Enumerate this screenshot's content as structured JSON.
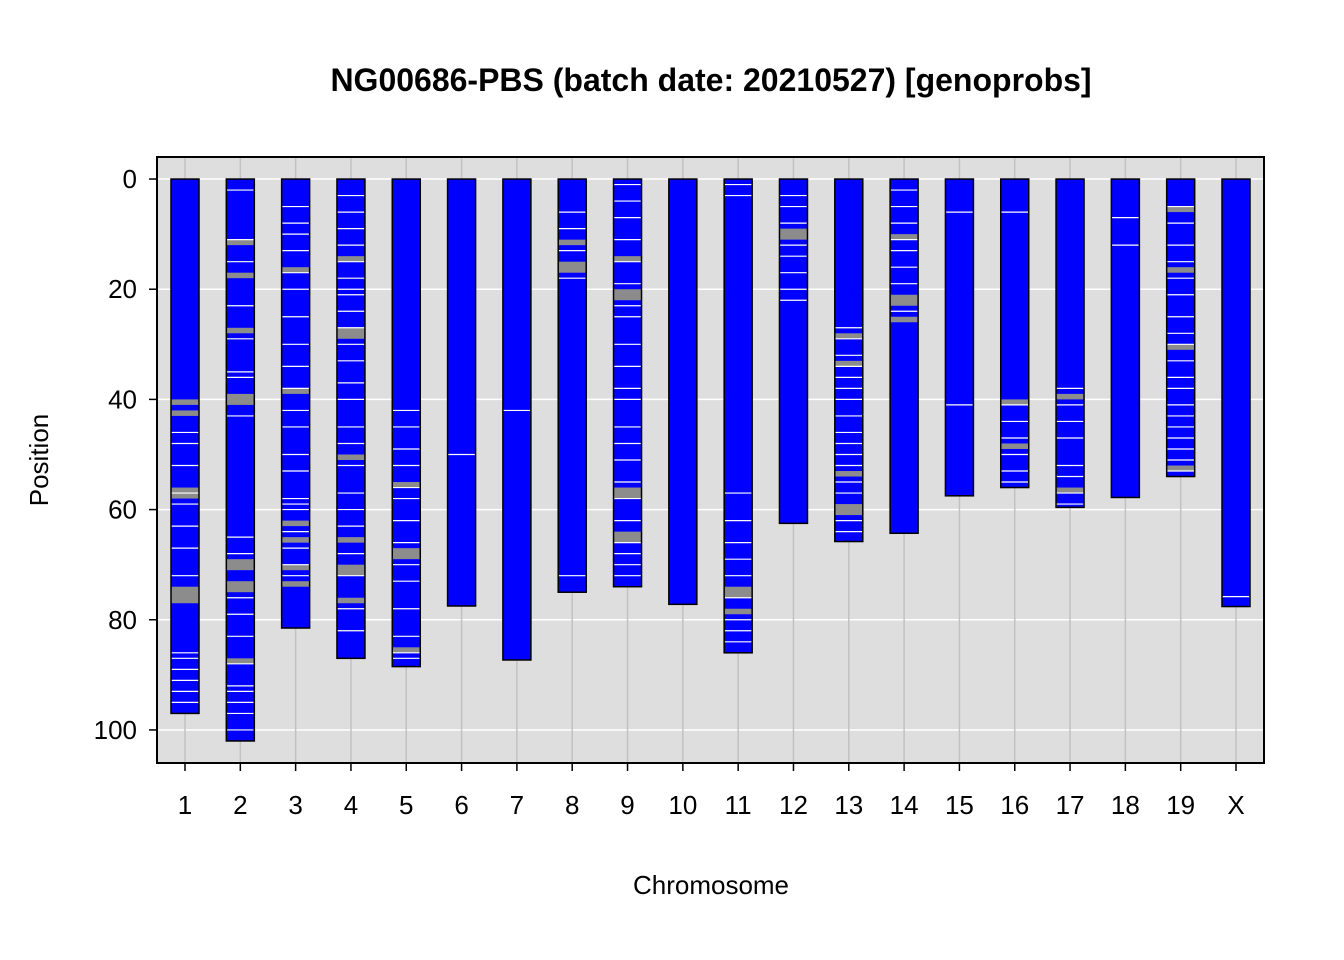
{
  "chart_data": {
    "type": "chromosome-ideogram",
    "title": "NG00686-PBS (batch date: 20210527) [genoprobs]",
    "xlabel": "Chromosome",
    "ylabel": "Position",
    "ylim": [
      106,
      -4
    ],
    "y_ticks": [
      0,
      20,
      40,
      60,
      80,
      100
    ],
    "grid": true,
    "background_color": "#dedede",
    "chromosome_color": "#0000ff",
    "band_colors": {
      "white": "#ffffff",
      "gray": "#8c8c8c"
    },
    "chromosomes": [
      {
        "name": "1",
        "length": 97,
        "white": [
          46,
          48,
          52,
          57,
          59,
          63,
          67,
          72,
          86,
          87,
          89,
          91,
          93,
          95
        ],
        "gray": [
          [
            40,
            41
          ],
          [
            42,
            43
          ],
          [
            56,
            58
          ],
          [
            74,
            77
          ]
        ]
      },
      {
        "name": "2",
        "length": 102,
        "white": [
          2,
          11,
          15,
          23,
          29,
          35,
          36,
          43,
          65,
          68,
          76,
          79,
          83,
          88,
          92,
          93,
          95,
          97,
          100
        ],
        "gray": [
          [
            11,
            12
          ],
          [
            17,
            18
          ],
          [
            27,
            28
          ],
          [
            39,
            41
          ],
          [
            69,
            71
          ],
          [
            73,
            75
          ],
          [
            87,
            88
          ]
        ]
      },
      {
        "name": "3",
        "length": 81.5,
        "white": [
          5,
          8,
          10,
          13,
          17,
          20,
          25,
          30,
          34,
          38,
          42,
          45,
          50,
          53,
          58,
          59,
          60,
          64,
          67,
          70,
          72
        ],
        "gray": [
          [
            16,
            17
          ],
          [
            38,
            39
          ],
          [
            62,
            63
          ],
          [
            65,
            66
          ],
          [
            70,
            71
          ],
          [
            73,
            74
          ]
        ]
      },
      {
        "name": "4",
        "length": 87,
        "white": [
          3,
          6,
          9,
          12,
          15,
          18,
          20,
          21,
          24,
          27,
          30,
          33,
          37,
          40,
          45,
          48,
          52,
          57,
          60,
          63,
          68,
          72,
          78,
          82
        ],
        "gray": [
          [
            14,
            15
          ],
          [
            27,
            29
          ],
          [
            50,
            51
          ],
          [
            65,
            66
          ],
          [
            70,
            72
          ],
          [
            76,
            77
          ]
        ]
      },
      {
        "name": "5",
        "length": 88.5,
        "white": [
          42,
          45,
          49,
          52,
          56,
          58,
          62,
          66,
          70,
          73,
          78,
          83,
          86,
          87
        ],
        "gray": [
          [
            55,
            56
          ],
          [
            67,
            69
          ],
          [
            85,
            86
          ]
        ]
      },
      {
        "name": "6",
        "length": 77.5,
        "white": [
          50
        ],
        "gray": []
      },
      {
        "name": "7",
        "length": 87.3,
        "white": [
          42
        ],
        "gray": []
      },
      {
        "name": "8",
        "length": 75,
        "white": [
          6,
          9,
          13,
          18,
          72
        ],
        "gray": [
          [
            11,
            12
          ],
          [
            15,
            17
          ]
        ]
      },
      {
        "name": "9",
        "length": 74,
        "white": [
          1,
          4,
          7,
          11,
          15,
          19,
          23,
          25,
          30,
          34,
          38,
          40,
          45,
          48,
          51,
          55,
          58,
          62,
          66,
          68,
          70,
          72
        ],
        "gray": [
          [
            14,
            15
          ],
          [
            20,
            22
          ],
          [
            56,
            58
          ],
          [
            64,
            66
          ]
        ]
      },
      {
        "name": "10",
        "length": 77.2,
        "white": [],
        "gray": []
      },
      {
        "name": "11",
        "length": 86,
        "white": [
          1,
          3,
          57,
          62,
          66,
          69,
          72,
          76,
          80,
          82,
          84
        ],
        "gray": [
          [
            74,
            76
          ],
          [
            78,
            79
          ]
        ]
      },
      {
        "name": "12",
        "length": 62.5,
        "white": [
          3,
          5,
          8,
          12,
          14,
          17,
          20,
          22
        ],
        "gray": [
          [
            9,
            11
          ]
        ]
      },
      {
        "name": "13",
        "length": 65.8,
        "white": [
          27,
          29,
          32,
          34,
          36,
          38,
          40,
          43,
          46,
          48,
          50,
          52,
          55,
          57,
          62,
          64
        ],
        "gray": [
          [
            28,
            29
          ],
          [
            33,
            34
          ],
          [
            53,
            54
          ],
          [
            59,
            61
          ]
        ]
      },
      {
        "name": "14",
        "length": 64.3,
        "white": [
          2,
          5,
          8,
          11,
          13,
          16,
          19,
          24
        ],
        "gray": [
          [
            10,
            11
          ],
          [
            21,
            23
          ],
          [
            25,
            26
          ]
        ]
      },
      {
        "name": "15",
        "length": 57.5,
        "white": [
          6,
          41
        ],
        "gray": []
      },
      {
        "name": "16",
        "length": 56,
        "white": [
          6,
          41,
          44,
          47,
          50,
          53,
          55
        ],
        "gray": [
          [
            40,
            41
          ],
          [
            48,
            49
          ]
        ]
      },
      {
        "name": "17",
        "length": 59.6,
        "white": [
          38,
          41,
          44,
          47,
          52,
          54,
          57,
          59
        ],
        "gray": [
          [
            39,
            40
          ],
          [
            56,
            57
          ]
        ]
      },
      {
        "name": "18",
        "length": 57.8,
        "white": [
          7,
          12
        ],
        "gray": []
      },
      {
        "name": "19",
        "length": 54,
        "white": [
          5,
          8,
          12,
          15,
          18,
          21,
          25,
          28,
          30,
          33,
          36,
          38,
          41,
          43,
          45,
          47,
          49,
          51,
          53
        ],
        "gray": [
          [
            5,
            6
          ],
          [
            16,
            17
          ],
          [
            30,
            31
          ],
          [
            52,
            53
          ]
        ]
      },
      {
        "name": "X",
        "length": 77.6,
        "white": [
          75.8
        ],
        "gray": []
      }
    ]
  }
}
